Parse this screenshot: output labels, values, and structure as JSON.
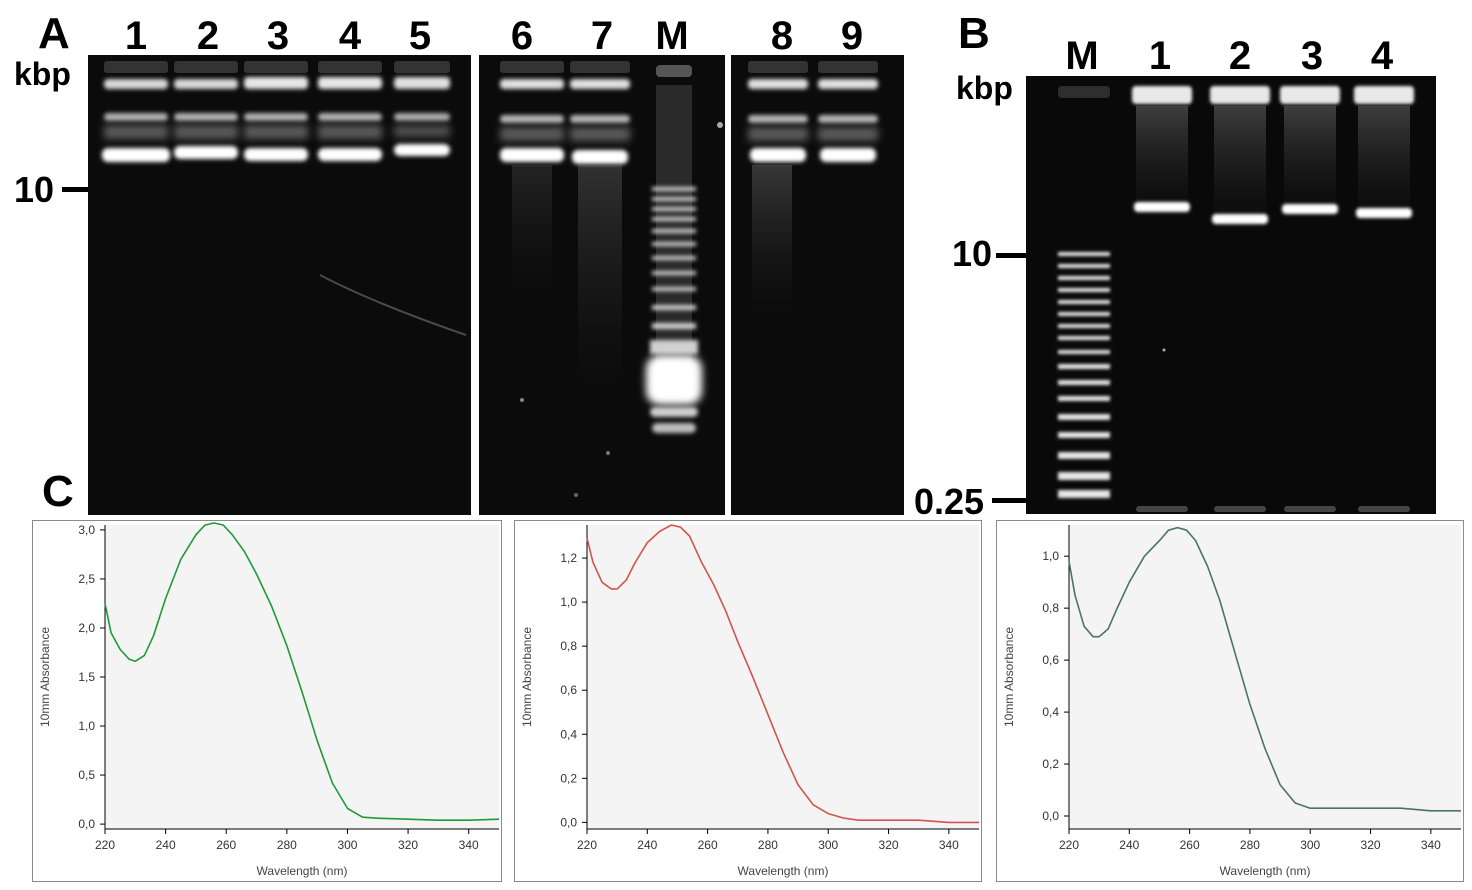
{
  "panels": {
    "a": {
      "letter": "A",
      "unit": "kbp",
      "marker_value": "10",
      "lanes": [
        "1",
        "2",
        "3",
        "4",
        "5",
        "6",
        "7",
        "M",
        "8",
        "9"
      ]
    },
    "b": {
      "letter": "B",
      "unit": "kbp",
      "marker_top": "10",
      "marker_bottom": "0.25",
      "lanes": [
        "M",
        "1",
        "2",
        "3",
        "4"
      ]
    },
    "c": {
      "letter": "C"
    }
  },
  "chart_data": [
    {
      "type": "line",
      "xlabel": "Wavelength (nm)",
      "ylabel": "10mm Absorbance",
      "xlim": [
        220,
        350
      ],
      "ylim": [
        -0.05,
        3.05
      ],
      "xticks": [
        "220",
        "240",
        "260",
        "280",
        "300",
        "320",
        "340"
      ],
      "yticks": [
        "0,0",
        "0,5",
        "1,0",
        "1,5",
        "2,0",
        "2,5",
        "3,0"
      ],
      "ytick_values": [
        0,
        0.5,
        1.0,
        1.5,
        2.0,
        2.5,
        3.0
      ],
      "color": "#1f9a3a",
      "series": [
        {
          "x": [
            220,
            222,
            225,
            228,
            230,
            233,
            236,
            240,
            245,
            250,
            253,
            256,
            259,
            262,
            266,
            270,
            275,
            280,
            285,
            290,
            295,
            300,
            305,
            310,
            320,
            330,
            340,
            350
          ],
          "values": [
            2.25,
            1.95,
            1.78,
            1.68,
            1.66,
            1.72,
            1.92,
            2.3,
            2.7,
            2.95,
            3.05,
            3.07,
            3.05,
            2.95,
            2.78,
            2.55,
            2.22,
            1.82,
            1.35,
            0.85,
            0.42,
            0.16,
            0.07,
            0.06,
            0.05,
            0.04,
            0.04,
            0.05
          ]
        }
      ]
    },
    {
      "type": "line",
      "xlabel": "Wavelength (nm)",
      "ylabel": "10mm Absorbance",
      "xlim": [
        220,
        350
      ],
      "ylim": [
        -0.03,
        1.35
      ],
      "xticks": [
        "220",
        "240",
        "260",
        "280",
        "300",
        "320",
        "340"
      ],
      "yticks": [
        "0,0",
        "0,2",
        "0,4",
        "0,6",
        "0,8",
        "1,0",
        "1,2"
      ],
      "ytick_values": [
        0,
        0.2,
        0.4,
        0.6,
        0.8,
        1.0,
        1.2
      ],
      "color": "#d2554d",
      "series": [
        {
          "x": [
            220,
            222,
            225,
            228,
            230,
            233,
            236,
            240,
            244,
            248,
            251,
            254,
            258,
            262,
            266,
            270,
            275,
            280,
            285,
            290,
            295,
            300,
            305,
            310,
            320,
            330,
            340,
            350
          ],
          "values": [
            1.29,
            1.18,
            1.09,
            1.06,
            1.06,
            1.1,
            1.18,
            1.27,
            1.32,
            1.35,
            1.34,
            1.3,
            1.18,
            1.08,
            0.96,
            0.82,
            0.66,
            0.49,
            0.32,
            0.17,
            0.08,
            0.04,
            0.02,
            0.01,
            0.01,
            0.01,
            0.0,
            0.0
          ]
        }
      ]
    },
    {
      "type": "line",
      "xlabel": "Wavelength (nm)",
      "ylabel": "10mm Absorbance",
      "xlim": [
        220,
        350
      ],
      "ylim": [
        -0.05,
        1.12
      ],
      "xticks": [
        "220",
        "240",
        "260",
        "280",
        "300",
        "320",
        "340"
      ],
      "yticks": [
        "0,0",
        "0,2",
        "0,4",
        "0,6",
        "0,8",
        "1,0"
      ],
      "ytick_values": [
        0,
        0.2,
        0.4,
        0.6,
        0.8,
        1.0
      ],
      "color": "#4a7370",
      "series": [
        {
          "x": [
            220,
            222,
            225,
            228,
            230,
            233,
            236,
            240,
            245,
            250,
            253,
            256,
            259,
            262,
            266,
            270,
            275,
            280,
            285,
            290,
            295,
            300,
            305,
            310,
            320,
            330,
            340,
            350
          ],
          "values": [
            0.98,
            0.85,
            0.73,
            0.69,
            0.69,
            0.72,
            0.8,
            0.9,
            1.0,
            1.06,
            1.1,
            1.11,
            1.1,
            1.06,
            0.96,
            0.83,
            0.63,
            0.43,
            0.26,
            0.12,
            0.05,
            0.03,
            0.03,
            0.03,
            0.03,
            0.03,
            0.02,
            0.02
          ]
        }
      ]
    }
  ]
}
